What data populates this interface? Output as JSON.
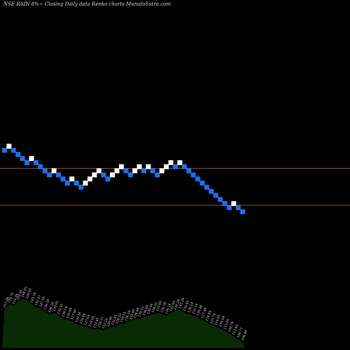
{
  "title": "NSE RAIN  8%~  Closing Daily data  Renko  charts MunafaSutra.com",
  "chart_data": {
    "type": "renko",
    "title": "NSE RAIN  8%~  Closing Daily data  Renko  charts MunafaSutra.com",
    "brick_colors": {
      "up": "#ffffff",
      "down": "#1e6fe8"
    },
    "line_color": "#8a4a2a",
    "volume_fill": "#0a2a06",
    "bricks": [
      {
        "col": 0,
        "level": 15,
        "dir": "down"
      },
      {
        "col": 1,
        "level": 16,
        "dir": "up"
      },
      {
        "col": 2,
        "level": 15,
        "dir": "down"
      },
      {
        "col": 3,
        "level": 14,
        "dir": "down"
      },
      {
        "col": 4,
        "level": 13,
        "dir": "down"
      },
      {
        "col": 5,
        "level": 12,
        "dir": "down"
      },
      {
        "col": 6,
        "level": 13,
        "dir": "up"
      },
      {
        "col": 7,
        "level": 12,
        "dir": "down"
      },
      {
        "col": 8,
        "level": 11,
        "dir": "down"
      },
      {
        "col": 9,
        "level": 10,
        "dir": "down"
      },
      {
        "col": 10,
        "level": 9,
        "dir": "down"
      },
      {
        "col": 11,
        "level": 10,
        "dir": "up"
      },
      {
        "col": 12,
        "level": 9,
        "dir": "down"
      },
      {
        "col": 13,
        "level": 8,
        "dir": "down"
      },
      {
        "col": 14,
        "level": 7,
        "dir": "down"
      },
      {
        "col": 15,
        "level": 8,
        "dir": "up"
      },
      {
        "col": 16,
        "level": 7,
        "dir": "down"
      },
      {
        "col": 17,
        "level": 6,
        "dir": "down"
      },
      {
        "col": 18,
        "level": 7,
        "dir": "up"
      },
      {
        "col": 19,
        "level": 8,
        "dir": "up"
      },
      {
        "col": 20,
        "level": 9,
        "dir": "up"
      },
      {
        "col": 21,
        "level": 10,
        "dir": "up"
      },
      {
        "col": 22,
        "level": 9,
        "dir": "down"
      },
      {
        "col": 23,
        "level": 8,
        "dir": "down"
      },
      {
        "col": 24,
        "level": 9,
        "dir": "up"
      },
      {
        "col": 25,
        "level": 10,
        "dir": "up"
      },
      {
        "col": 26,
        "level": 11,
        "dir": "up"
      },
      {
        "col": 27,
        "level": 10,
        "dir": "down"
      },
      {
        "col": 28,
        "level": 9,
        "dir": "down"
      },
      {
        "col": 29,
        "level": 10,
        "dir": "up"
      },
      {
        "col": 30,
        "level": 11,
        "dir": "up"
      },
      {
        "col": 31,
        "level": 10,
        "dir": "down"
      },
      {
        "col": 32,
        "level": 11,
        "dir": "up"
      },
      {
        "col": 33,
        "level": 10,
        "dir": "down"
      },
      {
        "col": 34,
        "level": 9,
        "dir": "down"
      },
      {
        "col": 35,
        "level": 10,
        "dir": "up"
      },
      {
        "col": 36,
        "level": 11,
        "dir": "up"
      },
      {
        "col": 37,
        "level": 12,
        "dir": "up"
      },
      {
        "col": 38,
        "level": 11,
        "dir": "down"
      },
      {
        "col": 39,
        "level": 12,
        "dir": "up"
      },
      {
        "col": 40,
        "level": 11,
        "dir": "down"
      },
      {
        "col": 41,
        "level": 10,
        "dir": "down"
      },
      {
        "col": 42,
        "level": 9,
        "dir": "down"
      },
      {
        "col": 43,
        "level": 8,
        "dir": "down"
      },
      {
        "col": 44,
        "level": 7,
        "dir": "down"
      },
      {
        "col": 45,
        "level": 6,
        "dir": "down"
      },
      {
        "col": 46,
        "level": 5,
        "dir": "down"
      },
      {
        "col": 47,
        "level": 4,
        "dir": "down"
      },
      {
        "col": 48,
        "level": 3,
        "dir": "down"
      },
      {
        "col": 49,
        "level": 2,
        "dir": "down"
      },
      {
        "col": 50,
        "level": 1,
        "dir": "down"
      },
      {
        "col": 51,
        "level": 2,
        "dir": "up"
      },
      {
        "col": 52,
        "level": 1,
        "dir": "down"
      },
      {
        "col": 53,
        "level": 0,
        "dir": "down"
      }
    ],
    "reference_lines": [
      {
        "level": 10.6
      },
      {
        "level": 1.6
      }
    ],
    "volume": [
      0.55,
      0.62,
      0.6,
      0.66,
      0.7,
      0.68,
      0.62,
      0.58,
      0.56,
      0.52,
      0.48,
      0.5,
      0.46,
      0.42,
      0.4,
      0.38,
      0.34,
      0.32,
      0.3,
      0.28,
      0.26,
      0.27,
      0.25,
      0.28,
      0.3,
      0.32,
      0.34,
      0.36,
      0.38,
      0.4,
      0.42,
      0.44,
      0.46,
      0.48,
      0.5,
      0.48,
      0.46,
      0.5,
      0.52,
      0.54,
      0.5,
      0.48,
      0.46,
      0.44,
      0.4,
      0.36,
      0.32,
      0.3,
      0.28,
      0.24,
      0.2,
      0.16,
      0.12,
      0.08
    ],
    "brick_labels": [
      "157.08",
      "159.75",
      "153.28",
      "155.95",
      "148.03",
      "150.65",
      "145.39",
      "142.53",
      "147.05",
      "139.28",
      "136.28",
      "139.02",
      "133.45",
      "136.74",
      "130.64",
      "127.46",
      "130.16",
      "124.84",
      "127.64",
      "130.09",
      "133.45",
      "136.33",
      "133.20",
      "130.81",
      "133.45",
      "136.33",
      "139.14",
      "136.20",
      "133.45",
      "136.68",
      "139.53",
      "136.60",
      "139.04",
      "136.32",
      "133.60",
      "136.38",
      "139.24",
      "142.04",
      "139.28",
      "142.28",
      "139.45",
      "136.24",
      "133.14",
      "130.46",
      "127.49",
      "124.84",
      "121.79",
      "118.85",
      "116.04",
      "113.05",
      "109.79",
      "112.65",
      "109.71",
      "106.46"
    ]
  }
}
